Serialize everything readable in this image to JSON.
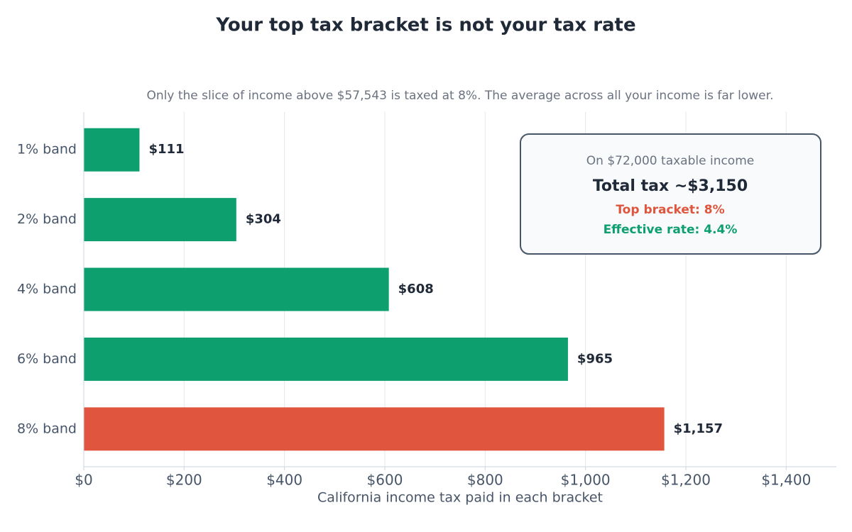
{
  "chart_data": {
    "type": "barh",
    "title": "Your top tax bracket is not your tax rate",
    "subtitle": "Only the slice of income above $57,543 is taxed at 8%. The average across all your income is far lower.",
    "x_label": "California income tax paid in each bracket",
    "categories": [
      "1% band",
      "2% band",
      "4% band",
      "6% band",
      "8% band"
    ],
    "values": [
      111,
      304,
      608,
      965,
      1157
    ],
    "value_labels": [
      "$111",
      "$304",
      "$608",
      "$965",
      "$1,157"
    ],
    "colors": [
      "#0e9f6e",
      "#0e9f6e",
      "#0e9f6e",
      "#0e9f6e",
      "#e0553d"
    ],
    "xlim": [
      0,
      1500
    ],
    "xticks": [
      {
        "value": 0,
        "label": "$0"
      },
      {
        "value": 200,
        "label": "$200"
      },
      {
        "value": 400,
        "label": "$400"
      },
      {
        "value": 600,
        "label": "$600"
      },
      {
        "value": 800,
        "label": "$800"
      },
      {
        "value": 1000,
        "label": "$1,000"
      },
      {
        "value": 1200,
        "label": "$1,200"
      },
      {
        "value": 1400,
        "label": "$1,400"
      }
    ],
    "grid": true,
    "annotation": {
      "lines": [
        "On $72,000 taxable income",
        "Total tax  ~$3,150",
        "Top bracket: 8%",
        "Effective rate: 4.4%"
      ]
    }
  }
}
